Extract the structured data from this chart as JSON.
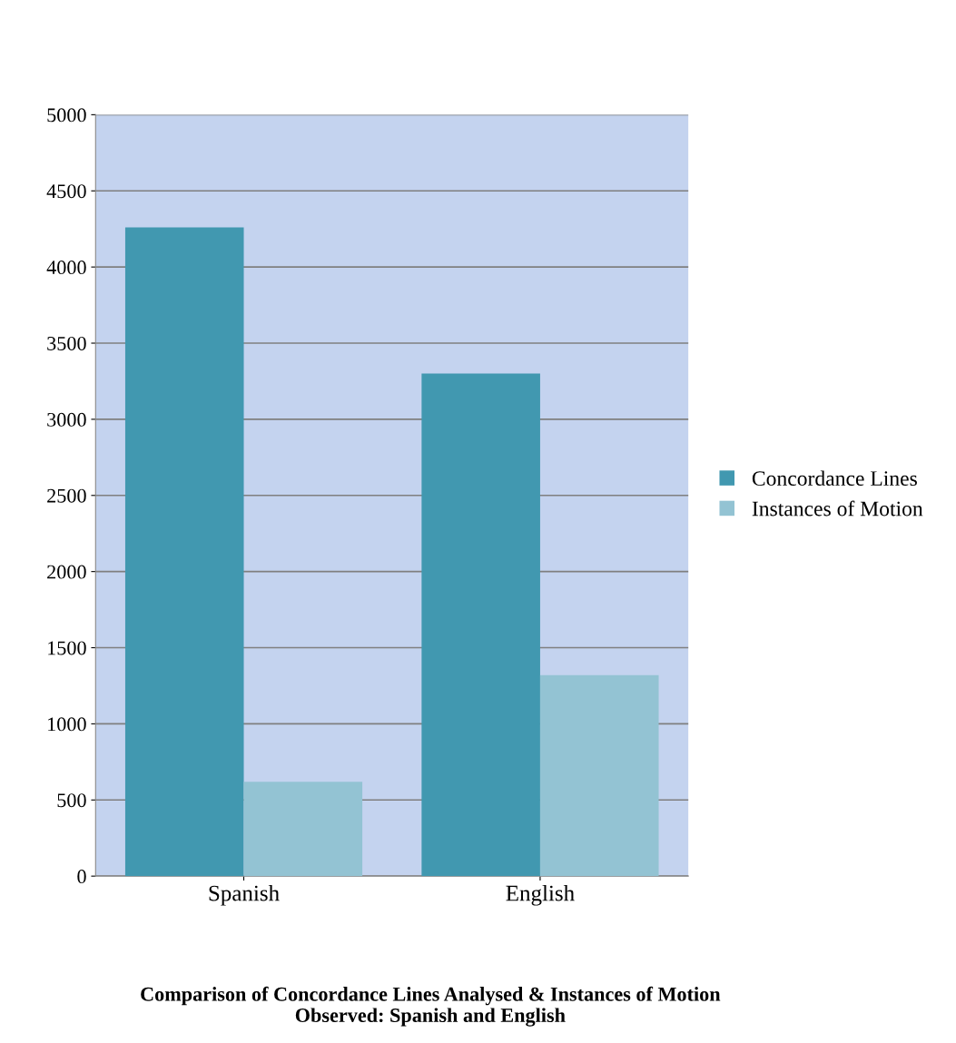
{
  "chart_data": {
    "type": "bar",
    "title": "Comparison of Concordance Lines Analysed & Instances of Motion\nObserved: Spanish and English",
    "categories": [
      "Spanish",
      "English"
    ],
    "series": [
      {
        "name": "Concordance Lines",
        "color": "#4198b0",
        "values": [
          4260,
          3300
        ]
      },
      {
        "name": "Instances of Motion",
        "color": "#93c3d3",
        "values": [
          620,
          1320
        ]
      }
    ],
    "ylim": [
      0,
      5000
    ],
    "yticks": [
      0,
      500,
      1000,
      1500,
      2000,
      2500,
      3000,
      3500,
      4000,
      4500,
      5000
    ],
    "grid": "y",
    "legend": "right"
  }
}
